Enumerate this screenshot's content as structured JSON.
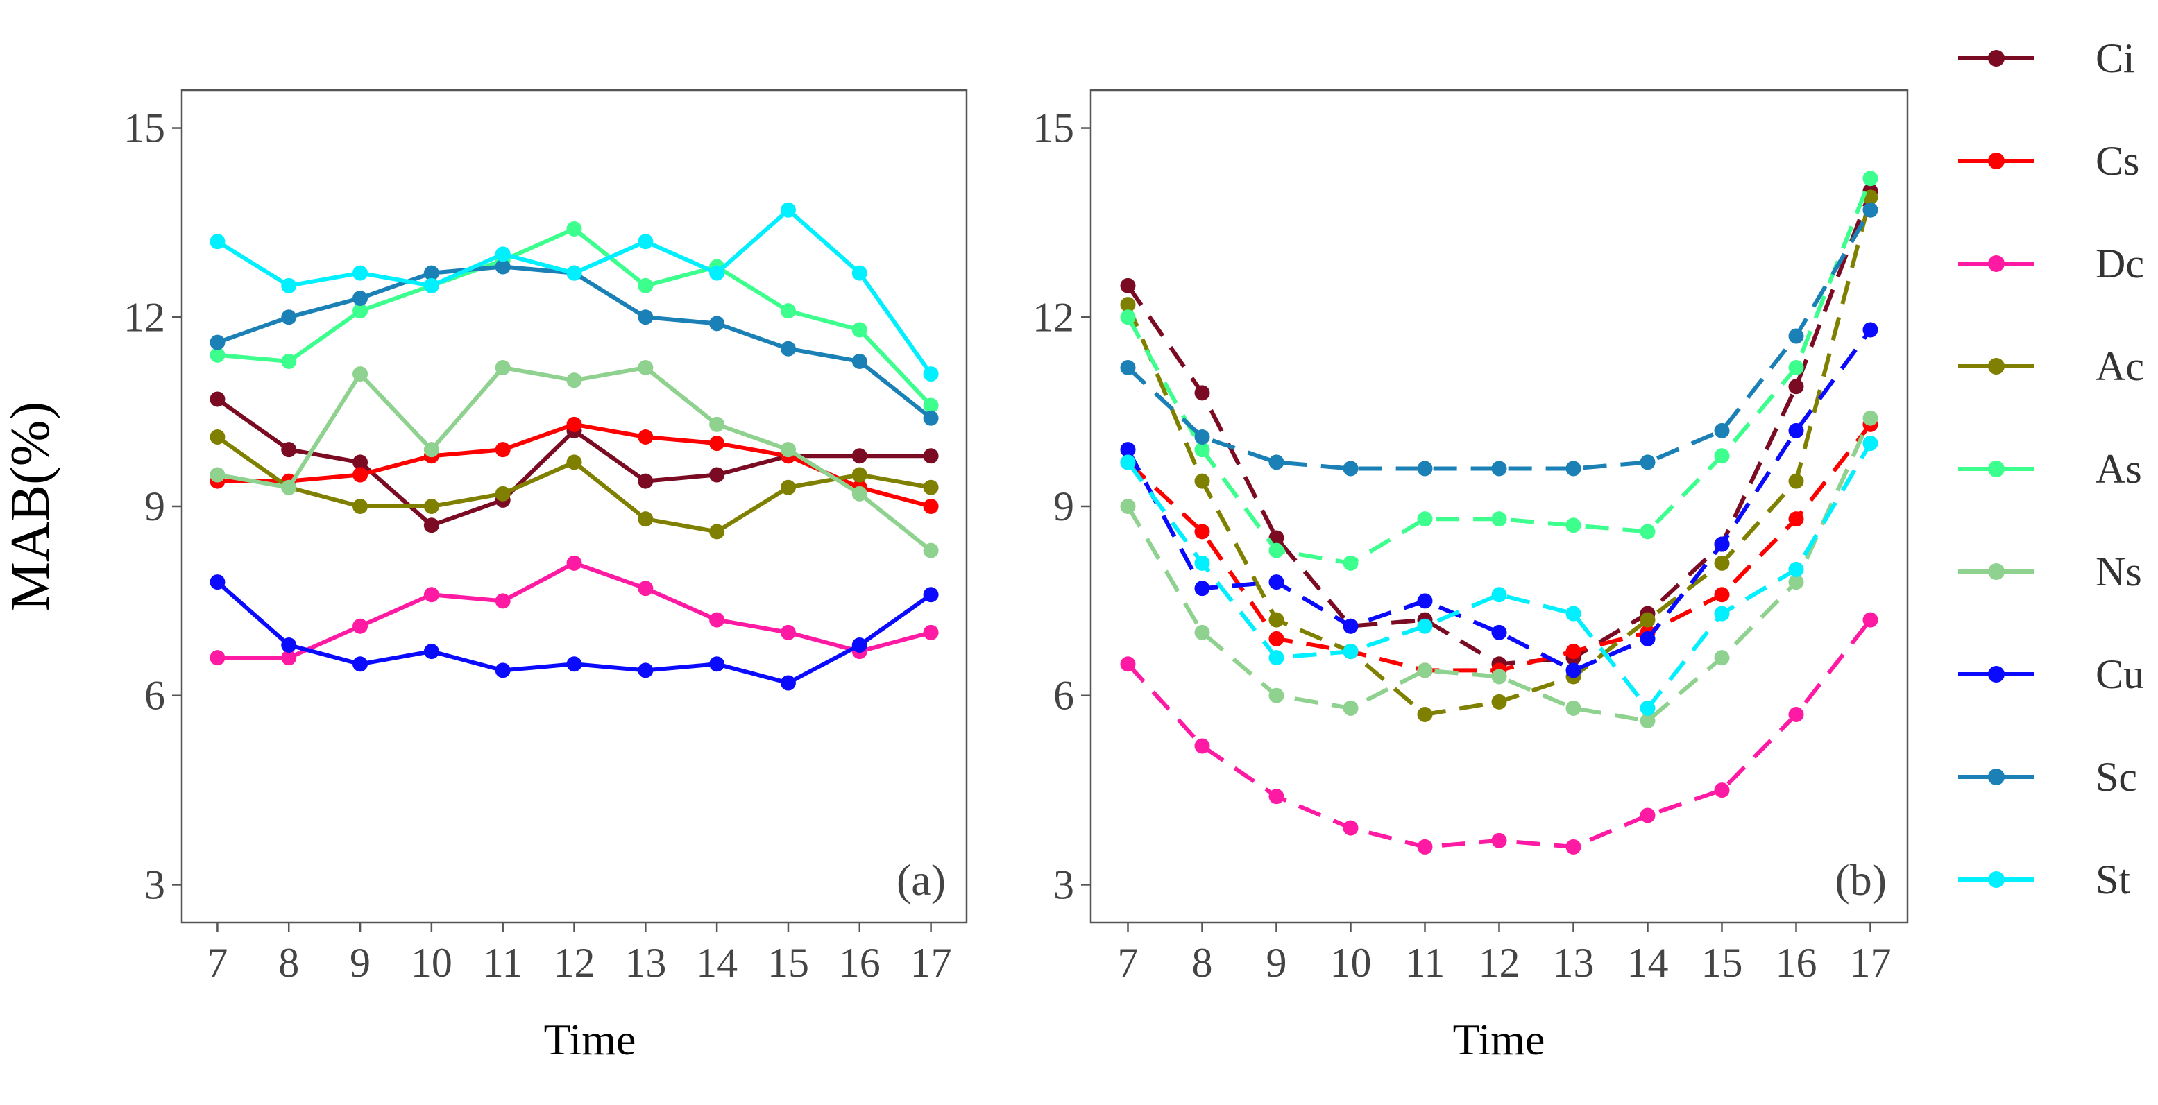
{
  "chart_data": {
    "type": "line",
    "ylabel": "MAB(%)",
    "xlabel": "Time",
    "x": [
      7,
      8,
      9,
      10,
      11,
      12,
      13,
      14,
      15,
      16,
      17
    ],
    "yticks": [
      3,
      6,
      9,
      12,
      15
    ],
    "ylim": [
      2.4,
      15.6
    ],
    "xlim": [
      6.5,
      17.5
    ],
    "grid": false,
    "legend_position": "right",
    "legend": [
      {
        "name": "Ci",
        "color": "#7b0b22"
      },
      {
        "name": "Cs",
        "color": "#ff0000"
      },
      {
        "name": "Dc",
        "color": "#ff1aa3"
      },
      {
        "name": "Ac",
        "color": "#808000"
      },
      {
        "name": "As",
        "color": "#3dff8e"
      },
      {
        "name": "Ns",
        "color": "#8fd18f"
      },
      {
        "name": "Cu",
        "color": "#0a0aff"
      },
      {
        "name": "Sc",
        "color": "#1a80b5"
      },
      {
        "name": "St",
        "color": "#00f0ff"
      }
    ],
    "panels": [
      {
        "label": "(a)",
        "line_style": "solid",
        "series": [
          {
            "name": "Ci",
            "values": [
              10.7,
              9.9,
              9.7,
              8.7,
              9.1,
              10.2,
              9.4,
              9.5,
              9.8,
              9.8,
              9.8
            ]
          },
          {
            "name": "Cs",
            "values": [
              9.4,
              9.4,
              9.5,
              9.8,
              9.9,
              10.3,
              10.1,
              10.0,
              9.8,
              9.3,
              9.0
            ]
          },
          {
            "name": "Dc",
            "values": [
              6.6,
              6.6,
              7.1,
              7.6,
              7.5,
              8.1,
              7.7,
              7.2,
              7.0,
              6.7,
              7.0
            ]
          },
          {
            "name": "Ac",
            "values": [
              10.1,
              9.3,
              9.0,
              9.0,
              9.2,
              9.7,
              8.8,
              8.6,
              9.3,
              9.5,
              9.3
            ]
          },
          {
            "name": "As",
            "values": [
              11.4,
              11.3,
              12.1,
              12.5,
              12.9,
              13.4,
              12.5,
              12.8,
              12.1,
              11.8,
              10.6
            ]
          },
          {
            "name": "Ns",
            "values": [
              9.5,
              9.3,
              11.1,
              9.9,
              11.2,
              11.0,
              11.2,
              10.3,
              9.9,
              9.2,
              8.3
            ]
          },
          {
            "name": "Cu",
            "values": [
              7.8,
              6.8,
              6.5,
              6.7,
              6.4,
              6.5,
              6.4,
              6.5,
              6.2,
              6.8,
              7.6
            ]
          },
          {
            "name": "Sc",
            "values": [
              11.6,
              12.0,
              12.3,
              12.7,
              12.8,
              12.7,
              12.0,
              11.9,
              11.5,
              11.3,
              10.4
            ]
          },
          {
            "name": "St",
            "values": [
              13.2,
              12.5,
              12.7,
              12.5,
              13.0,
              12.7,
              13.2,
              12.7,
              13.7,
              12.7,
              11.1
            ]
          }
        ]
      },
      {
        "label": "(b)",
        "line_style": "dashed",
        "series": [
          {
            "name": "Ci",
            "values": [
              12.5,
              10.8,
              8.5,
              7.1,
              7.2,
              6.5,
              6.6,
              7.3,
              8.4,
              10.9,
              14.0
            ]
          },
          {
            "name": "Cs",
            "values": [
              9.7,
              8.6,
              6.9,
              6.7,
              6.4,
              6.4,
              6.7,
              7.0,
              7.6,
              8.8,
              10.3
            ]
          },
          {
            "name": "Dc",
            "values": [
              6.5,
              5.2,
              4.4,
              3.9,
              3.6,
              3.7,
              3.6,
              4.1,
              4.5,
              5.7,
              7.2
            ]
          },
          {
            "name": "Ac",
            "values": [
              12.2,
              9.4,
              7.2,
              6.7,
              5.7,
              5.9,
              6.3,
              7.2,
              8.1,
              9.4,
              13.9
            ]
          },
          {
            "name": "As",
            "values": [
              12.0,
              9.9,
              8.3,
              8.1,
              8.8,
              8.8,
              8.7,
              8.6,
              9.8,
              11.2,
              14.2
            ]
          },
          {
            "name": "Ns",
            "values": [
              9.0,
              7.0,
              6.0,
              5.8,
              6.4,
              6.3,
              5.8,
              5.6,
              6.6,
              7.8,
              10.4
            ]
          },
          {
            "name": "Cu",
            "values": [
              9.9,
              7.7,
              7.8,
              7.1,
              7.5,
              7.0,
              6.4,
              6.9,
              8.4,
              10.2,
              11.8
            ]
          },
          {
            "name": "Sc",
            "values": [
              11.2,
              10.1,
              9.7,
              9.6,
              9.6,
              9.6,
              9.6,
              9.7,
              10.2,
              11.7,
              13.7
            ]
          },
          {
            "name": "St",
            "values": [
              9.7,
              8.1,
              6.6,
              6.7,
              7.1,
              7.6,
              7.3,
              5.8,
              7.3,
              8.0,
              10.0
            ]
          }
        ]
      }
    ]
  }
}
